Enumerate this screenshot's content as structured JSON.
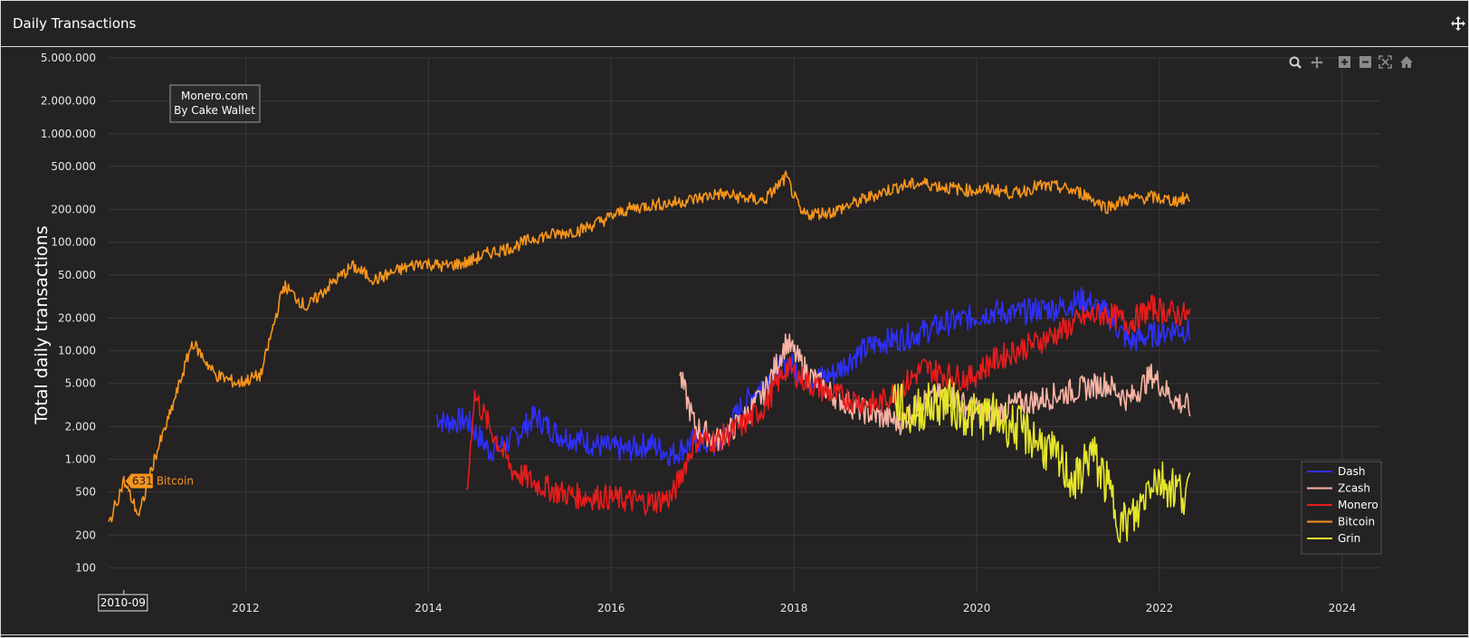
{
  "header": {
    "title": "Daily Transactions"
  },
  "watermark": {
    "line1": "Monero.com",
    "line2": "By Cake Wallet"
  },
  "toolbar": [
    "zoom-icon",
    "pan-icon",
    "zoom-in-icon",
    "zoom-out-icon",
    "autoscale-icon",
    "reset-axes-icon"
  ],
  "hover": {
    "x_label": "2010-09",
    "value": "631",
    "series": "Bitcoin"
  },
  "chart_data": {
    "type": "line",
    "title": "",
    "xlabel": "",
    "ylabel": "Total daily transactions",
    "yscale": "log",
    "ylim": [
      60,
      5000000
    ],
    "xlim": [
      "2010-07",
      "2024-06"
    ],
    "x_ticks": [
      "2012",
      "2014",
      "2016",
      "2018",
      "2020",
      "2022",
      "2024"
    ],
    "y_ticks": [
      "5.000.000",
      "2.000.000",
      "1.000.000",
      "500.000",
      "200.000",
      "100.000",
      "50.000",
      "20.000",
      "10.000",
      "5.000",
      "2.000",
      "1.000",
      "500",
      "200",
      "100"
    ],
    "y_tick_values": [
      5000000,
      2000000,
      1000000,
      500000,
      200000,
      100000,
      50000,
      20000,
      10000,
      5000,
      2000,
      1000,
      500,
      200,
      100
    ],
    "grid": true,
    "legend_position": "bottom-right",
    "series": [
      {
        "name": "Dash",
        "color": "#2f2fff",
        "x": [
          "2014-02",
          "2014-03",
          "2014-06",
          "2014-09",
          "2014-12",
          "2015-03",
          "2015-06",
          "2015-09",
          "2015-12",
          "2016-03",
          "2016-06",
          "2016-09",
          "2016-12",
          "2017-03",
          "2017-06",
          "2017-09",
          "2017-12",
          "2018-03",
          "2018-06",
          "2018-09",
          "2018-12",
          "2019-03",
          "2019-06",
          "2019-09",
          "2019-12",
          "2020-03",
          "2020-06",
          "2020-09",
          "2020-12",
          "2021-03",
          "2021-06",
          "2021-09",
          "2021-12",
          "2022-03",
          "2022-05"
        ],
        "y": [
          2500,
          2200,
          2300,
          1200,
          1500,
          2500,
          1700,
          1500,
          1300,
          1200,
          1400,
          1100,
          1500,
          1300,
          3000,
          5000,
          8000,
          5500,
          6000,
          9000,
          12000,
          13000,
          15000,
          18000,
          20000,
          23000,
          22000,
          24000,
          25000,
          30000,
          22000,
          12000,
          14000,
          16000,
          15000
        ]
      },
      {
        "name": "Zcash",
        "color": "#f8b4a4",
        "x": [
          "2016-10",
          "2016-12",
          "2017-03",
          "2017-06",
          "2017-09",
          "2017-12",
          "2018-03",
          "2018-06",
          "2018-09",
          "2018-12",
          "2019-03",
          "2019-06",
          "2019-09",
          "2019-12",
          "2020-03",
          "2020-06",
          "2020-09",
          "2020-12",
          "2021-03",
          "2021-06",
          "2021-09",
          "2021-12",
          "2022-03",
          "2022-05"
        ],
        "y": [
          6000,
          2000,
          1500,
          2200,
          4000,
          12000,
          6000,
          4000,
          3000,
          2500,
          2200,
          3500,
          4000,
          3000,
          2500,
          3200,
          3500,
          4000,
          4500,
          5000,
          3500,
          6000,
          3500,
          3000
        ]
      },
      {
        "name": "Monero",
        "color": "#e81c1c",
        "x": [
          "2014-06",
          "2014-07",
          "2014-09",
          "2014-12",
          "2015-03",
          "2015-06",
          "2015-09",
          "2015-12",
          "2016-03",
          "2016-06",
          "2016-09",
          "2016-12",
          "2017-03",
          "2017-06",
          "2017-09",
          "2017-12",
          "2018-03",
          "2018-06",
          "2018-09",
          "2018-12",
          "2019-03",
          "2019-06",
          "2019-09",
          "2019-12",
          "2020-03",
          "2020-06",
          "2020-09",
          "2020-12",
          "2021-03",
          "2021-06",
          "2021-09",
          "2021-12",
          "2022-03",
          "2022-05"
        ],
        "y": [
          400,
          4000,
          2000,
          800,
          600,
          500,
          450,
          450,
          420,
          400,
          450,
          1500,
          1500,
          2000,
          3000,
          7000,
          5000,
          4000,
          3500,
          3200,
          4500,
          7000,
          6000,
          5500,
          8000,
          10000,
          12000,
          15000,
          20000,
          22000,
          18000,
          25000,
          22000,
          21000
        ]
      },
      {
        "name": "Bitcoin",
        "color": "#f7951d",
        "x": [
          "2010-07",
          "2010-09",
          "2010-11",
          "2011-01",
          "2011-03",
          "2011-06",
          "2011-09",
          "2011-12",
          "2012-03",
          "2012-06",
          "2012-09",
          "2012-12",
          "2013-03",
          "2013-06",
          "2013-09",
          "2013-12",
          "2014-03",
          "2014-06",
          "2014-09",
          "2014-12",
          "2015-03",
          "2015-06",
          "2015-09",
          "2015-12",
          "2016-03",
          "2016-06",
          "2016-09",
          "2016-12",
          "2017-03",
          "2017-06",
          "2017-09",
          "2017-12",
          "2018-02",
          "2018-06",
          "2018-09",
          "2018-12",
          "2019-03",
          "2019-06",
          "2019-09",
          "2019-12",
          "2020-03",
          "2020-06",
          "2020-09",
          "2020-12",
          "2021-03",
          "2021-06",
          "2021-09",
          "2021-12",
          "2022-03",
          "2022-05"
        ],
        "y": [
          250,
          631,
          300,
          1000,
          2500,
          12000,
          6000,
          5000,
          6000,
          40000,
          25000,
          40000,
          60000,
          45000,
          55000,
          65000,
          60000,
          65000,
          80000,
          90000,
          110000,
          120000,
          130000,
          160000,
          200000,
          220000,
          230000,
          250000,
          280000,
          260000,
          240000,
          400000,
          180000,
          190000,
          230000,
          280000,
          330000,
          350000,
          320000,
          300000,
          310000,
          280000,
          330000,
          320000,
          280000,
          210000,
          250000,
          260000,
          240000,
          260000
        ]
      },
      {
        "name": "Grin",
        "color": "#e6e62a",
        "x": [
          "2019-02",
          "2019-04",
          "2019-06",
          "2019-09",
          "2019-12",
          "2020-03",
          "2020-06",
          "2020-09",
          "2020-12",
          "2021-02",
          "2021-04",
          "2021-06",
          "2021-08",
          "2021-10",
          "2021-12",
          "2022-02",
          "2022-04",
          "2022-05"
        ],
        "y": [
          4000,
          2500,
          3000,
          3500,
          2500,
          2500,
          2000,
          1500,
          900,
          600,
          1200,
          600,
          250,
          300,
          700,
          600,
          500,
          500
        ]
      }
    ]
  }
}
